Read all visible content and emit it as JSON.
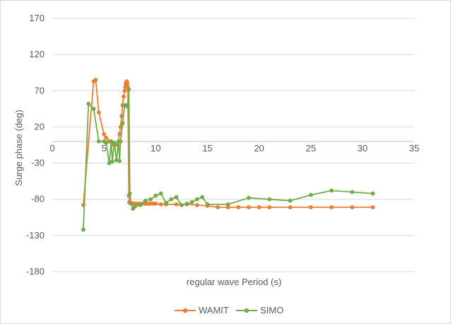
{
  "chart_data": {
    "type": "line",
    "title": "",
    "xlabel": "regular wave Period (s)",
    "ylabel": "Surge phase (deg)",
    "xlim": [
      0,
      35
    ],
    "ylim": [
      -180,
      170
    ],
    "x_ticks": [
      0,
      5,
      10,
      15,
      20,
      25,
      30,
      35
    ],
    "y_ticks": [
      170,
      120,
      70,
      20,
      -30,
      -80,
      -130,
      -180
    ],
    "grid": "horizontal",
    "legend_position": "bottom",
    "series": [
      {
        "name": "WAMIT",
        "color": "#ED7D31",
        "points": [
          [
            3,
            -88
          ],
          [
            4,
            83
          ],
          [
            4.2,
            85
          ],
          [
            4.5,
            40
          ],
          [
            5,
            10
          ],
          [
            5.2,
            5
          ],
          [
            5.5,
            0
          ],
          [
            5.8,
            -3
          ],
          [
            6,
            -5
          ],
          [
            6.3,
            -5
          ],
          [
            6.5,
            10
          ],
          [
            6.6,
            20
          ],
          [
            6.7,
            35
          ],
          [
            6.8,
            50
          ],
          [
            6.9,
            62
          ],
          [
            7,
            70
          ],
          [
            7.05,
            75
          ],
          [
            7.1,
            80
          ],
          [
            7.15,
            82
          ],
          [
            7.2,
            83
          ],
          [
            7.25,
            80
          ],
          [
            7.3,
            75
          ],
          [
            7.4,
            -75
          ],
          [
            7.45,
            -84
          ],
          [
            7.5,
            -85
          ],
          [
            7.6,
            -86
          ],
          [
            7.8,
            -86
          ],
          [
            8,
            -86
          ],
          [
            8.2,
            -86
          ],
          [
            8.4,
            -86
          ],
          [
            8.6,
            -86
          ],
          [
            8.8,
            -86
          ],
          [
            9,
            -86
          ],
          [
            9.2,
            -86
          ],
          [
            9.4,
            -86
          ],
          [
            9.6,
            -86
          ],
          [
            9.8,
            -86
          ],
          [
            10,
            -86
          ],
          [
            10.5,
            -87
          ],
          [
            11,
            -87
          ],
          [
            12,
            -87
          ],
          [
            13,
            -87
          ],
          [
            14,
            -88
          ],
          [
            15,
            -89
          ],
          [
            16,
            -91
          ],
          [
            17,
            -91
          ],
          [
            18,
            -91
          ],
          [
            19,
            -91
          ],
          [
            20,
            -91
          ],
          [
            21,
            -91
          ],
          [
            23,
            -91
          ],
          [
            25,
            -91
          ],
          [
            27,
            -91
          ],
          [
            29,
            -91
          ],
          [
            31,
            -91
          ]
        ]
      },
      {
        "name": "SIMO",
        "color": "#70AD47",
        "points": [
          [
            3,
            -122
          ],
          [
            3.5,
            52
          ],
          [
            4,
            45
          ],
          [
            4.5,
            0
          ],
          [
            5,
            0
          ],
          [
            5.2,
            -2
          ],
          [
            5.5,
            -30
          ],
          [
            5.7,
            0
          ],
          [
            5.8,
            -28
          ],
          [
            6,
            -2
          ],
          [
            6.2,
            -26
          ],
          [
            6.4,
            0
          ],
          [
            6.5,
            -27
          ],
          [
            6.6,
            0
          ],
          [
            6.8,
            25
          ],
          [
            7,
            50
          ],
          [
            7.2,
            50
          ],
          [
            7.3,
            48
          ],
          [
            7.4,
            72
          ],
          [
            7.5,
            -72
          ],
          [
            7.6,
            -85
          ],
          [
            7.8,
            -93
          ],
          [
            8,
            -90
          ],
          [
            8.5,
            -88
          ],
          [
            9,
            -82
          ],
          [
            9.5,
            -80
          ],
          [
            10,
            -75
          ],
          [
            10.5,
            -72
          ],
          [
            11,
            -85
          ],
          [
            11.5,
            -80
          ],
          [
            12,
            -77
          ],
          [
            12.5,
            -88
          ],
          [
            13,
            -86
          ],
          [
            13.5,
            -84
          ],
          [
            14,
            -80
          ],
          [
            14.5,
            -77
          ],
          [
            15,
            -87
          ],
          [
            17,
            -87
          ],
          [
            19,
            -78
          ],
          [
            21,
            -80
          ],
          [
            23,
            -82
          ],
          [
            25,
            -74
          ],
          [
            27,
            -68
          ],
          [
            29,
            -70
          ],
          [
            31,
            -72
          ]
        ]
      }
    ]
  }
}
